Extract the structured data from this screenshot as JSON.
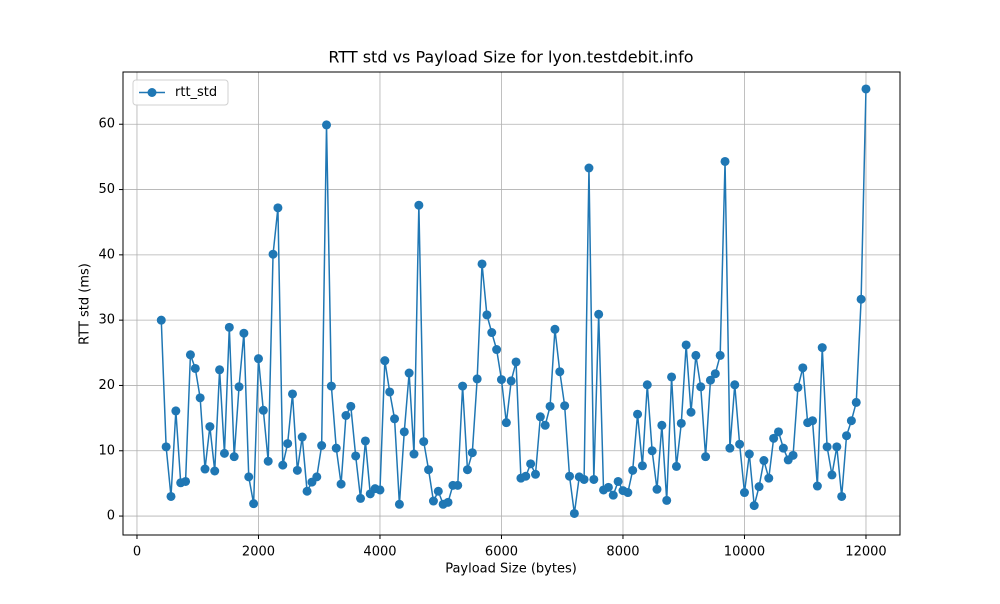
{
  "chart_data": {
    "type": "line",
    "title": "RTT std vs Payload Size for lyon.testdebit.info",
    "xlabel": "Payload Size (bytes)",
    "ylabel": "RTT std (ms)",
    "x": [
      400,
      480,
      560,
      640,
      720,
      800,
      880,
      960,
      1040,
      1120,
      1200,
      1280,
      1360,
      1440,
      1520,
      1600,
      1680,
      1760,
      1840,
      1920,
      2000,
      2080,
      2160,
      2240,
      2320,
      2400,
      2480,
      2560,
      2640,
      2720,
      2800,
      2880,
      2960,
      3040,
      3120,
      3200,
      3280,
      3360,
      3440,
      3520,
      3600,
      3680,
      3760,
      3840,
      3920,
      4000,
      4080,
      4160,
      4240,
      4320,
      4400,
      4480,
      4560,
      4640,
      4720,
      4800,
      4880,
      4960,
      5040,
      5120,
      5200,
      5280,
      5360,
      5440,
      5520,
      5600,
      5680,
      5760,
      5840,
      5920,
      6000,
      6080,
      6160,
      6240,
      6320,
      6400,
      6480,
      6560,
      6640,
      6720,
      6800,
      6880,
      6960,
      7040,
      7120,
      7200,
      7280,
      7360,
      7440,
      7520,
      7600,
      7680,
      7760,
      7840,
      7920,
      8000,
      8080,
      8160,
      8240,
      8320,
      8400,
      8480,
      8560,
      8640,
      8720,
      8800,
      8880,
      8960,
      9040,
      9120,
      9200,
      9280,
      9360,
      9440,
      9520,
      9600,
      9680,
      9760,
      9840,
      9920,
      10000,
      10080,
      10160,
      10240,
      10320,
      10400,
      10480,
      10560,
      10640,
      10720,
      10800,
      10880,
      10960,
      11040,
      11120,
      11200,
      11280,
      11360,
      11440,
      11520,
      11600,
      11680,
      11760,
      11840,
      11920,
      12000
    ],
    "series": [
      {
        "name": "rtt_std",
        "color": "#1f77b4",
        "values": [
          30.0,
          10.6,
          3.0,
          16.1,
          5.1,
          5.3,
          24.7,
          22.6,
          18.1,
          7.2,
          13.7,
          6.9,
          22.4,
          9.6,
          28.9,
          9.1,
          19.8,
          28.0,
          6.0,
          1.9,
          24.1,
          16.2,
          8.4,
          40.1,
          47.2,
          7.8,
          11.1,
          18.7,
          7.0,
          12.1,
          3.8,
          5.2,
          6.0,
          10.8,
          59.9,
          19.9,
          10.4,
          4.9,
          15.4,
          16.8,
          9.2,
          2.7,
          11.5,
          3.4,
          4.2,
          4.0,
          23.8,
          19.0,
          14.9,
          1.8,
          12.9,
          21.9,
          9.5,
          47.6,
          11.4,
          7.1,
          2.3,
          3.8,
          1.8,
          2.1,
          4.7,
          4.7,
          19.9,
          7.1,
          9.7,
          21.0,
          38.6,
          30.8,
          28.1,
          25.5,
          20.9,
          14.3,
          20.7,
          23.6,
          5.8,
          6.1,
          8.0,
          6.4,
          15.2,
          13.9,
          16.8,
          28.6,
          22.1,
          16.9,
          6.1,
          0.4,
          6.0,
          5.6,
          53.3,
          5.6,
          30.9,
          4.0,
          4.4,
          3.2,
          5.3,
          3.9,
          3.6,
          7.0,
          15.6,
          7.7,
          20.1,
          10.0,
          4.1,
          13.9,
          2.4,
          21.3,
          7.6,
          14.2,
          26.2,
          15.9,
          24.6,
          19.8,
          9.1,
          20.8,
          21.8,
          24.6,
          54.3,
          10.4,
          20.1,
          11.0,
          3.6,
          9.5,
          1.6,
          4.5,
          8.5,
          5.8,
          11.9,
          12.9,
          10.4,
          8.6,
          9.3,
          19.7,
          22.7,
          14.3,
          14.6,
          4.6,
          25.8,
          10.6,
          6.3,
          10.6,
          3.0,
          12.3,
          14.6,
          17.4,
          33.2,
          65.4
        ]
      }
    ],
    "xlim": [
      -230,
      12560
    ],
    "ylim": [
      -2.9,
      68.0
    ],
    "xticks": [
      0,
      2000,
      4000,
      6000,
      8000,
      10000,
      12000
    ],
    "yticks": [
      0,
      10,
      20,
      30,
      40,
      50,
      60
    ],
    "grid": true,
    "legend": "upper left"
  }
}
